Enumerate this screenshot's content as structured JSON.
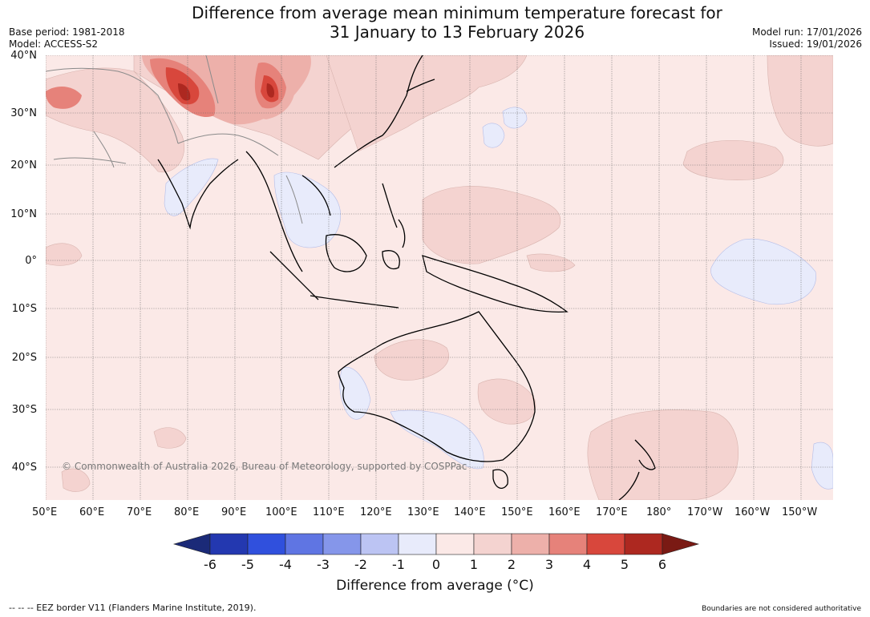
{
  "title": {
    "line1": "Difference from average mean minimum temperature forecast for",
    "line2": "31 January to 13 February 2026"
  },
  "meta_left": {
    "base_period": "Base period: 1981-2018",
    "model": "Model: ACCESS-S2"
  },
  "meta_right": {
    "model_run": "Model run: 17/01/2026",
    "issued": "Issued: 19/01/2026"
  },
  "map": {
    "lat_labels": [
      "40°N",
      "30°N",
      "20°N",
      "10°N",
      "0°",
      "10°S",
      "20°S",
      "30°S",
      "40°S"
    ],
    "lon_labels": [
      "50°E",
      "60°E",
      "70°E",
      "80°E",
      "90°E",
      "100°E",
      "110°E",
      "120°E",
      "130°E",
      "140°E",
      "150°E",
      "160°E",
      "170°E",
      "180°",
      "170°W",
      "160°W",
      "150°W"
    ],
    "copyright": "© Commonwealth of Australia 2026, Bureau of Meteorology, supported by COSPPac"
  },
  "colorbar": {
    "ticks": [
      "-6",
      "-5",
      "-4",
      "-3",
      "-2",
      "-1",
      "0",
      "1",
      "2",
      "3",
      "4",
      "5",
      "6"
    ],
    "colors": [
      "#1b2a78",
      "#2338b0",
      "#3050dd",
      "#5f75e3",
      "#8596ea",
      "#bcc4f3",
      "#e8ebfb",
      "#fbe9e7",
      "#f4d3d0",
      "#edb0aa",
      "#e6827a",
      "#d8473c",
      "#ad2820",
      "#7a1a14"
    ],
    "label": "Difference from average (°C)"
  },
  "footer": {
    "eez_note": "--  --  -- EEZ border V11 (Flanders Marine Institute, 2019).",
    "disclaimer": "Boundaries are not considered authoritative"
  }
}
